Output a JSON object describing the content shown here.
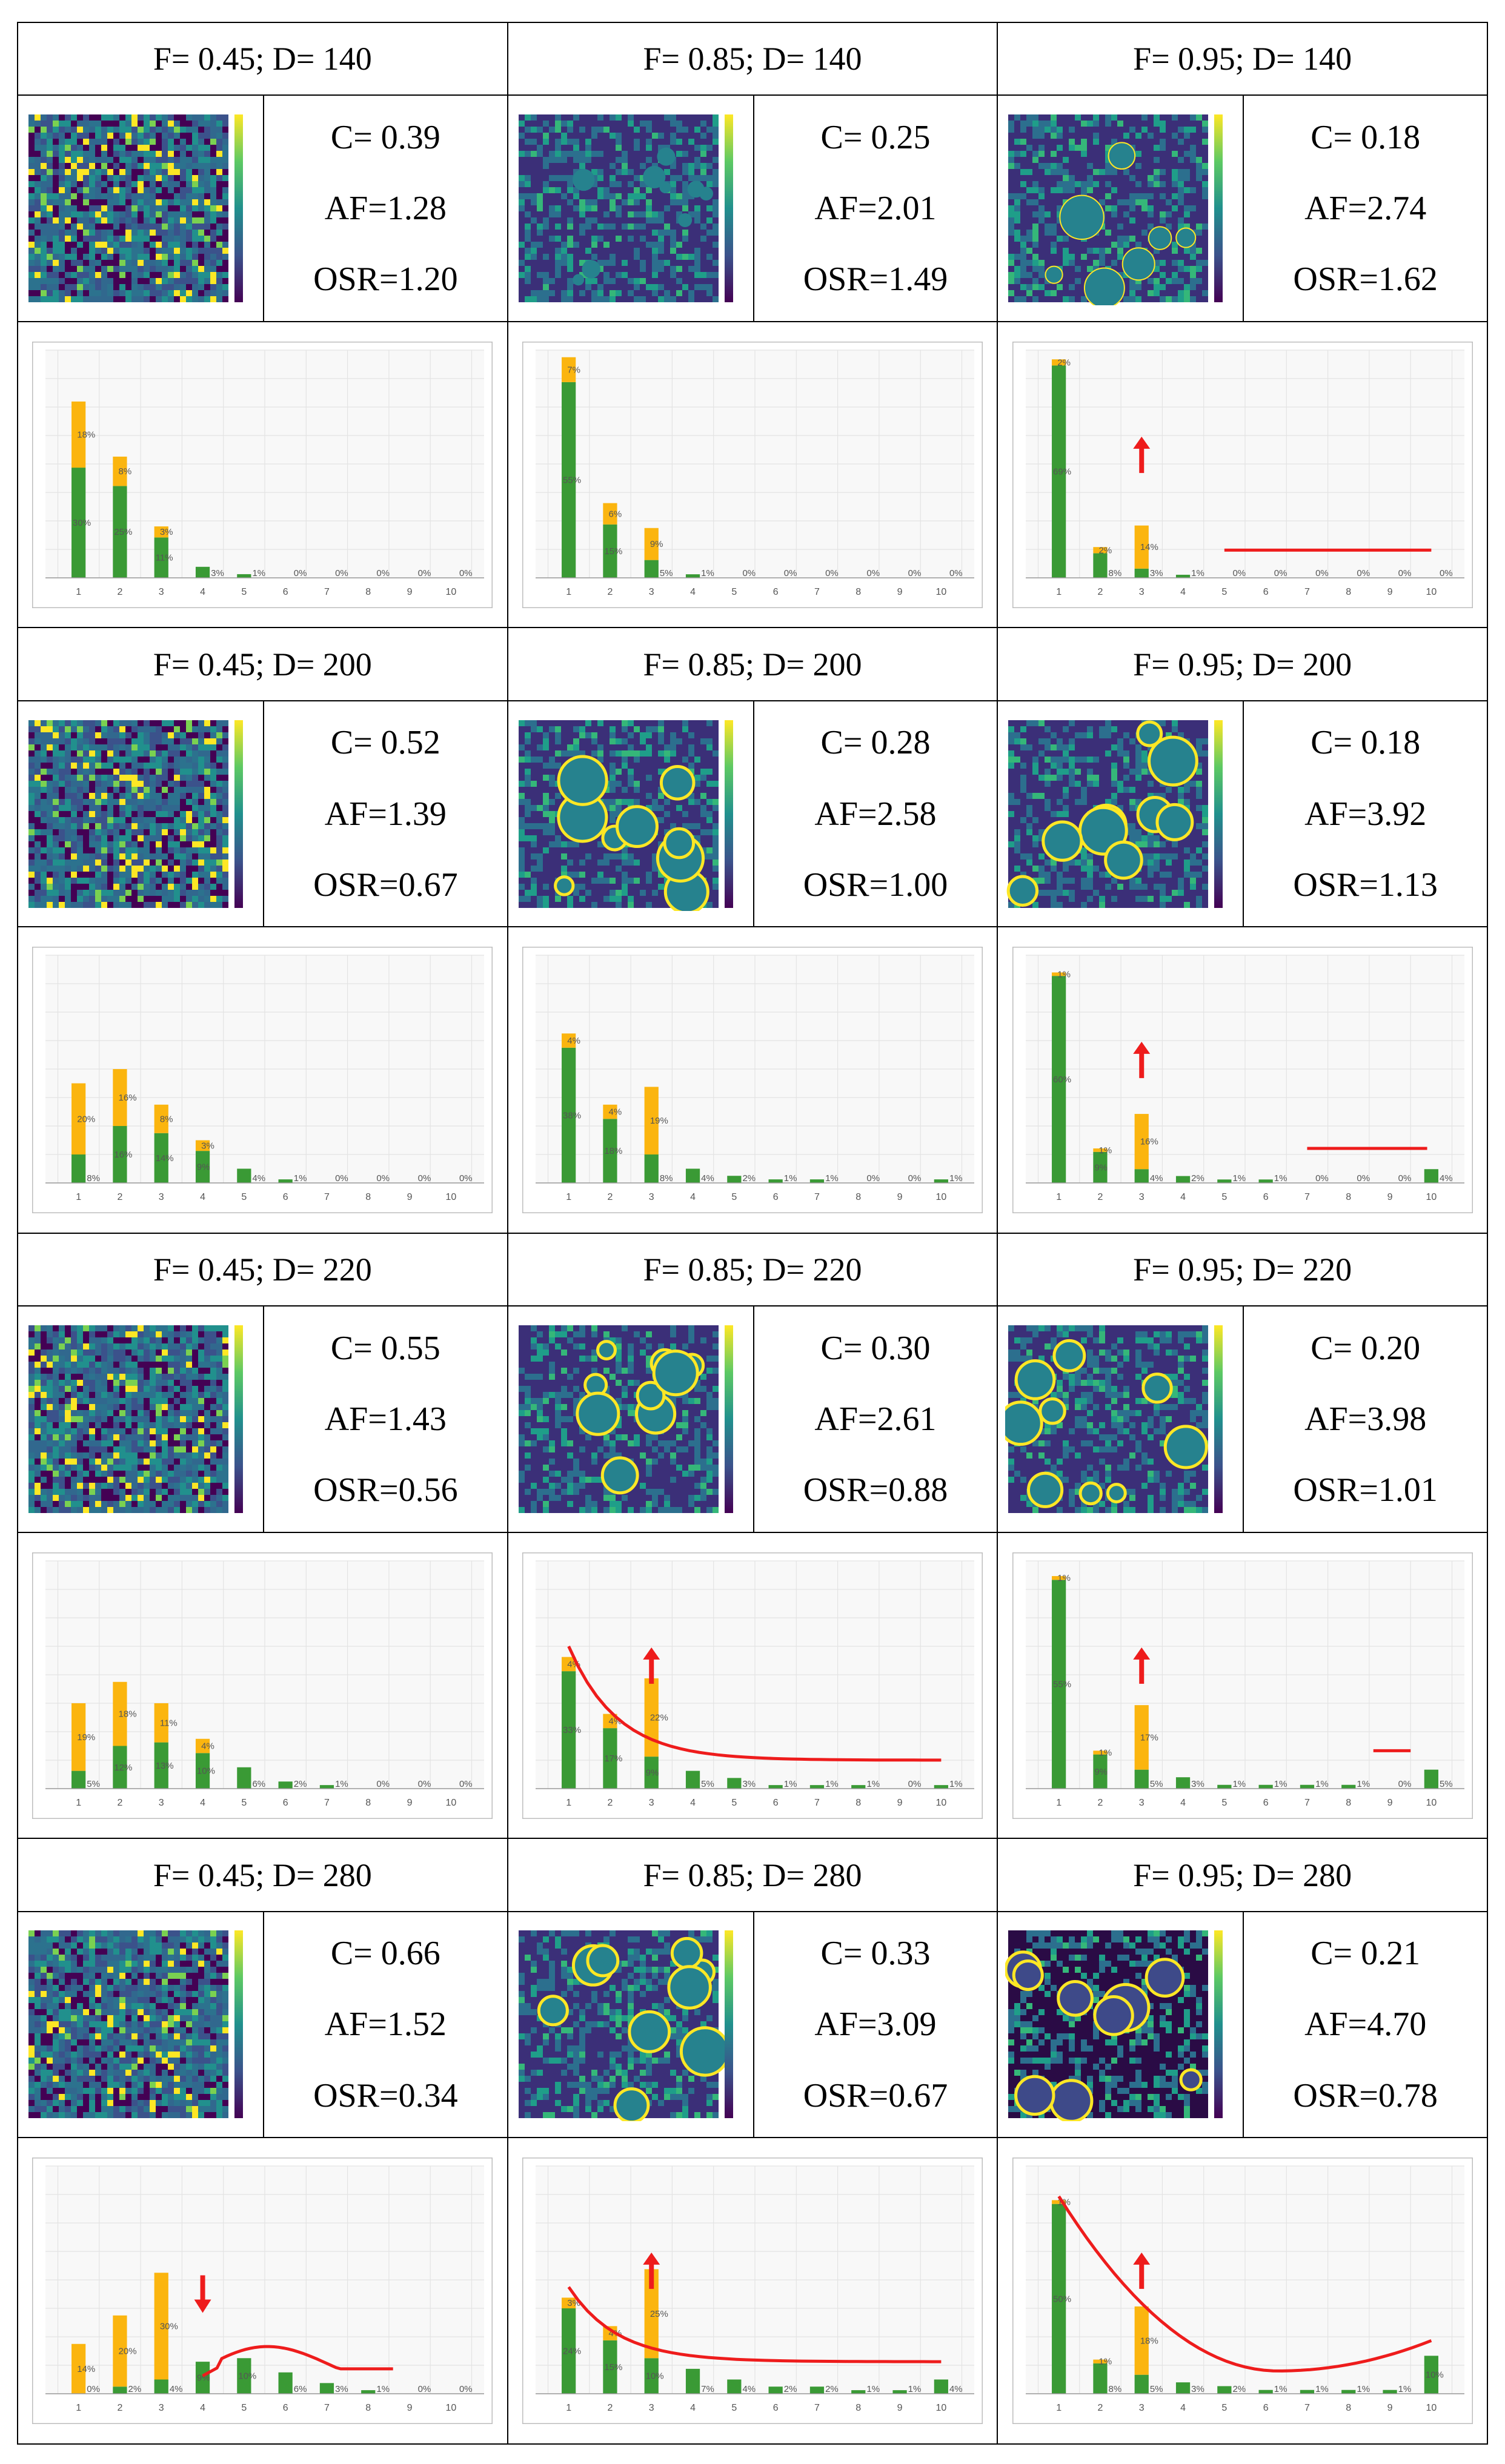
{
  "panels": [
    {
      "title": "F= 0.45; D= 140",
      "C": "C= 0.39",
      "AF": "AF=1.28",
      "OSR": "OSR=1.20",
      "map": "noise",
      "chart_data": {
        "type": "bar",
        "stacked": true,
        "categories": [
          "1",
          "2",
          "3",
          "4",
          "5",
          "6",
          "7",
          "8",
          "9",
          "10"
        ],
        "series": [
          {
            "name": "green",
            "color": "#3a9a35",
            "values": [
              30,
              25,
              11,
              3,
              1,
              0,
              0,
              0,
              0,
              0
            ]
          },
          {
            "name": "orange",
            "color": "#fbb50f",
            "values": [
              18,
              8,
              3,
              0,
              0,
              0,
              0,
              0,
              0,
              0
            ]
          }
        ],
        "green_labels": [
          "30%",
          "25%",
          "11%",
          "3%",
          "1%",
          "0%",
          "0%",
          "0%",
          "0%",
          "0%"
        ],
        "orange_labels": [
          "18%",
          "8%",
          "3%",
          "",
          "",
          "",
          "",
          "",
          "",
          ""
        ],
        "ylim": [
          0,
          62
        ]
      }
    },
    {
      "title": "F= 0.85; D= 140",
      "C": "C= 0.25",
      "AF": "AF=2.01",
      "OSR": "OSR=1.49",
      "map": "blobs-small",
      "chart_data": {
        "type": "bar",
        "stacked": true,
        "categories": [
          "1",
          "2",
          "3",
          "4",
          "5",
          "6",
          "7",
          "8",
          "9",
          "10"
        ],
        "series": [
          {
            "name": "green",
            "color": "#3a9a35",
            "values": [
              55,
              15,
              5,
              1,
              0,
              0,
              0,
              0,
              0,
              0
            ]
          },
          {
            "name": "orange",
            "color": "#fbb50f",
            "values": [
              7,
              6,
              9,
              0,
              0,
              0,
              0,
              0,
              0,
              0
            ]
          }
        ],
        "green_labels": [
          "55%",
          "15%",
          "5%",
          "1%",
          "0%",
          "0%",
          "0%",
          "0%",
          "0%",
          "0%"
        ],
        "orange_labels": [
          "7%",
          "6%",
          "9%",
          "",
          "",
          "",
          "",
          "",
          "",
          ""
        ],
        "ylim": [
          0,
          64
        ]
      }
    },
    {
      "title": "F= 0.95; D= 140",
      "C": "C= 0.18",
      "AF": "AF=2.74",
      "OSR": "OSR=1.62",
      "map": "blobs-large",
      "chart_data": {
        "type": "bar",
        "stacked": true,
        "categories": [
          "1",
          "2",
          "3",
          "4",
          "5",
          "6",
          "7",
          "8",
          "9",
          "10"
        ],
        "series": [
          {
            "name": "green",
            "color": "#3a9a35",
            "values": [
              69,
              8,
              3,
              1,
              0,
              0,
              0,
              0,
              0,
              0
            ]
          },
          {
            "name": "orange",
            "color": "#fbb50f",
            "values": [
              2,
              2,
              14,
              0,
              0,
              0,
              0,
              0,
              0,
              0
            ]
          }
        ],
        "green_labels": [
          "69%",
          "8%",
          "3%",
          "1%",
          "0%",
          "0%",
          "0%",
          "0%",
          "0%",
          "0%"
        ],
        "orange_labels": [
          "2%",
          "2%",
          "14%",
          "",
          "",
          "",
          "",
          "",
          "",
          ""
        ],
        "ylim": [
          0,
          74
        ],
        "arrow": {
          "x": 3,
          "dir": "up"
        },
        "redline": {
          "kind": "flat",
          "x0": 5,
          "x1": 10,
          "y": 9
        }
      }
    },
    {
      "title": "F= 0.45; D= 200",
      "C": "C= 0.52",
      "AF": "AF=1.39",
      "OSR": "OSR=0.67",
      "map": "noise",
      "chart_data": {
        "type": "bar",
        "stacked": true,
        "categories": [
          "1",
          "2",
          "3",
          "4",
          "5",
          "6",
          "7",
          "8",
          "9",
          "10"
        ],
        "series": [
          {
            "name": "green",
            "color": "#3a9a35",
            "values": [
              8,
              16,
              14,
              9,
              4,
              1,
              0,
              0,
              0,
              0
            ]
          },
          {
            "name": "orange",
            "color": "#fbb50f",
            "values": [
              20,
              16,
              8,
              3,
              0,
              0,
              0,
              0,
              0,
              0
            ]
          }
        ],
        "green_labels": [
          "8%",
          "16%",
          "14%",
          "9%",
          "4%",
          "1%",
          "0%",
          "0%",
          "0%",
          "0%"
        ],
        "orange_labels": [
          "20%",
          "16%",
          "8%",
          "3%",
          "",
          "",
          "",
          "",
          "",
          ""
        ],
        "ylim": [
          0,
          64
        ]
      }
    },
    {
      "title": "F= 0.85; D= 200",
      "C": "C= 0.28",
      "AF": "AF=2.58",
      "OSR": "OSR=1.00",
      "map": "rings-medium",
      "chart_data": {
        "type": "bar",
        "stacked": true,
        "categories": [
          "1",
          "2",
          "3",
          "4",
          "5",
          "6",
          "7",
          "8",
          "9",
          "10"
        ],
        "series": [
          {
            "name": "green",
            "color": "#3a9a35",
            "values": [
              38,
              18,
              8,
              4,
              2,
              1,
              1,
              0,
              0,
              1
            ]
          },
          {
            "name": "orange",
            "color": "#fbb50f",
            "values": [
              4,
              4,
              19,
              0,
              0,
              0,
              0,
              0,
              0,
              0
            ]
          }
        ],
        "green_labels": [
          "38%",
          "18%",
          "8%",
          "4%",
          "2%",
          "1%",
          "1%",
          "0%",
          "0%",
          "1%"
        ],
        "orange_labels": [
          "4%",
          "4%",
          "19%",
          "",
          "",
          "",
          "",
          "",
          "",
          ""
        ],
        "ylim": [
          0,
          64
        ]
      }
    },
    {
      "title": "F= 0.95; D= 200",
      "C": "C= 0.18",
      "AF": "AF=3.92",
      "OSR": "OSR=1.13",
      "map": "rings-large",
      "chart_data": {
        "type": "bar",
        "stacked": true,
        "categories": [
          "1",
          "2",
          "3",
          "4",
          "5",
          "6",
          "7",
          "8",
          "9",
          "10"
        ],
        "series": [
          {
            "name": "green",
            "color": "#3a9a35",
            "values": [
              60,
              9,
              4,
              2,
              1,
              1,
              0,
              0,
              0,
              4
            ]
          },
          {
            "name": "orange",
            "color": "#fbb50f",
            "values": [
              1,
              1,
              16,
              0,
              0,
              0,
              0,
              0,
              0,
              0
            ]
          }
        ],
        "green_labels": [
          "60%",
          "9%",
          "4%",
          "2%",
          "1%",
          "1%",
          "0%",
          "0%",
          "0%",
          "4%"
        ],
        "orange_labels": [
          "1%",
          "1%",
          "16%",
          "",
          "",
          "",
          "",
          "",
          "",
          ""
        ],
        "ylim": [
          0,
          66
        ],
        "arrow": {
          "x": 3,
          "dir": "up"
        },
        "redline": {
          "kind": "flat",
          "x0": 7,
          "x1": 9.9,
          "y": 10
        }
      }
    },
    {
      "title": "F= 0.45; D= 220",
      "C": "C= 0.55",
      "AF": "AF=1.43",
      "OSR": "OSR=0.56",
      "map": "noise",
      "chart_data": {
        "type": "bar",
        "stacked": true,
        "categories": [
          "1",
          "2",
          "3",
          "4",
          "5",
          "6",
          "7",
          "8",
          "9",
          "10"
        ],
        "series": [
          {
            "name": "green",
            "color": "#3a9a35",
            "values": [
              5,
              12,
              13,
              10,
              6,
              2,
              1,
              0,
              0,
              0
            ]
          },
          {
            "name": "orange",
            "color": "#fbb50f",
            "values": [
              19,
              18,
              11,
              4,
              0,
              0,
              0,
              0,
              0,
              0
            ]
          }
        ],
        "green_labels": [
          "5%",
          "12%",
          "13%",
          "10%",
          "6%",
          "2%",
          "1%",
          "0%",
          "0%",
          "0%"
        ],
        "orange_labels": [
          "19%",
          "18%",
          "11%",
          "4%",
          "",
          "",
          "",
          "",
          "",
          ""
        ],
        "ylim": [
          0,
          64
        ]
      }
    },
    {
      "title": "F= 0.85; D= 220",
      "C": "C= 0.30",
      "AF": "AF=2.61",
      "OSR": "OSR=0.88",
      "map": "rings-medium",
      "chart_data": {
        "type": "bar",
        "stacked": true,
        "categories": [
          "1",
          "2",
          "3",
          "4",
          "5",
          "6",
          "7",
          "8",
          "9",
          "10"
        ],
        "series": [
          {
            "name": "green",
            "color": "#3a9a35",
            "values": [
              33,
              17,
              9,
              5,
              3,
              1,
              1,
              1,
              0,
              1
            ]
          },
          {
            "name": "orange",
            "color": "#fbb50f",
            "values": [
              4,
              4,
              22,
              0,
              0,
              0,
              0,
              0,
              0,
              0
            ]
          }
        ],
        "green_labels": [
          "33%",
          "17%",
          "9%",
          "5%",
          "3%",
          "1%",
          "1%",
          "1%",
          "0%",
          "1%"
        ],
        "orange_labels": [
          "4%",
          "4%",
          "22%",
          "",
          "",
          "",
          "",
          "",
          "",
          ""
        ],
        "ylim": [
          0,
          64
        ],
        "arrow": {
          "x": 3,
          "dir": "up"
        },
        "redline": {
          "kind": "decay",
          "x0": 1,
          "x1": 10,
          "y0": 40,
          "y1": 8
        }
      }
    },
    {
      "title": "F= 0.95; D= 220",
      "C": "C= 0.20",
      "AF": "AF=3.98",
      "OSR": "OSR=1.01",
      "map": "rings-large",
      "chart_data": {
        "type": "bar",
        "stacked": true,
        "categories": [
          "1",
          "2",
          "3",
          "4",
          "5",
          "6",
          "7",
          "8",
          "9",
          "10"
        ],
        "series": [
          {
            "name": "green",
            "color": "#3a9a35",
            "values": [
              55,
              9,
              5,
              3,
              1,
              1,
              1,
              1,
              0,
              5
            ]
          },
          {
            "name": "orange",
            "color": "#fbb50f",
            "values": [
              1,
              1,
              17,
              0,
              0,
              0,
              0,
              0,
              0,
              0
            ]
          }
        ],
        "green_labels": [
          "55%",
          "9%",
          "5%",
          "3%",
          "1%",
          "1%",
          "1%",
          "1%",
          "0%",
          "5%"
        ],
        "orange_labels": [
          "1%",
          "1%",
          "17%",
          "",
          "",
          "",
          "",
          "",
          "",
          ""
        ],
        "ylim": [
          0,
          60
        ],
        "arrow": {
          "x": 3,
          "dir": "up"
        },
        "redline": {
          "kind": "flat",
          "x0": 8.6,
          "x1": 9.5,
          "y": 10
        }
      }
    },
    {
      "title": "F= 0.45; D= 280",
      "C": "C= 0.66",
      "AF": "AF=1.52",
      "OSR": "OSR=0.34",
      "map": "noise",
      "chart_data": {
        "type": "bar",
        "stacked": true,
        "categories": [
          "1",
          "2",
          "3",
          "4",
          "5",
          "6",
          "7",
          "8",
          "9",
          "10"
        ],
        "series": [
          {
            "name": "green",
            "color": "#3a9a35",
            "values": [
              0,
              2,
              4,
              9,
              10,
              6,
              3,
              1,
              0,
              0
            ]
          },
          {
            "name": "orange",
            "color": "#fbb50f",
            "values": [
              14,
              20,
              30,
              0,
              0,
              0,
              0,
              0,
              0,
              0
            ]
          }
        ],
        "green_labels": [
          "0%",
          "2%",
          "4%",
          "9%",
          "10%",
          "6%",
          "3%",
          "1%",
          "0%",
          "0%"
        ],
        "orange_labels": [
          "14%",
          "20%",
          "30%",
          "",
          "",
          "",
          "",
          "",
          "",
          ""
        ],
        "ylim": [
          0,
          64
        ],
        "arrow": {
          "x": 4,
          "dir": "down"
        },
        "redline": {
          "kind": "hump",
          "x0": 4,
          "x1": 8.6,
          "ypk": 14,
          "ye": 7
        }
      }
    },
    {
      "title": "F= 0.85; D= 280",
      "C": "C= 0.33",
      "AF": "AF=3.09",
      "OSR": "OSR=0.67",
      "map": "rings-bright",
      "chart_data": {
        "type": "bar",
        "stacked": true,
        "categories": [
          "1",
          "2",
          "3",
          "4",
          "5",
          "6",
          "7",
          "8",
          "9",
          "10"
        ],
        "series": [
          {
            "name": "green",
            "color": "#3a9a35",
            "values": [
              24,
              15,
              10,
              7,
              4,
              2,
              2,
              1,
              1,
              4
            ]
          },
          {
            "name": "orange",
            "color": "#fbb50f",
            "values": [
              3,
              4,
              25,
              0,
              0,
              0,
              0,
              0,
              0,
              0
            ]
          }
        ],
        "green_labels": [
          "24%",
          "15%",
          "10%",
          "7%",
          "4%",
          "2%",
          "2%",
          "1%",
          "1%",
          "4%"
        ],
        "orange_labels": [
          "3%",
          "4%",
          "25%",
          "",
          "",
          "",
          "",
          "",
          "",
          ""
        ],
        "ylim": [
          0,
          64
        ],
        "arrow": {
          "x": 3,
          "dir": "up"
        },
        "redline": {
          "kind": "decay",
          "x0": 1,
          "x1": 10,
          "y0": 30,
          "y1": 9
        }
      }
    },
    {
      "title": "F= 0.95; D= 280",
      "C": "C= 0.21",
      "AF": "AF=4.70",
      "OSR": "OSR=0.78",
      "map": "rings-dark",
      "chart_data": {
        "type": "bar",
        "stacked": true,
        "categories": [
          "1",
          "2",
          "3",
          "4",
          "5",
          "6",
          "7",
          "8",
          "9",
          "10"
        ],
        "series": [
          {
            "name": "green",
            "color": "#3a9a35",
            "values": [
              50,
              8,
              5,
              3,
              2,
              1,
              1,
              1,
              1,
              10
            ]
          },
          {
            "name": "orange",
            "color": "#fbb50f",
            "values": [
              1,
              1,
              18,
              0,
              0,
              0,
              0,
              0,
              0,
              0
            ]
          }
        ],
        "green_labels": [
          "50%",
          "8%",
          "5%",
          "3%",
          "2%",
          "1%",
          "1%",
          "1%",
          "1%",
          "10%"
        ],
        "orange_labels": [
          "1%",
          "1%",
          "18%",
          "",
          "",
          "",
          "",
          "",
          "",
          ""
        ],
        "ylim": [
          0,
          60
        ],
        "arrow": {
          "x": 3,
          "dir": "up"
        },
        "redline": {
          "kind": "uvalley",
          "x0": 1,
          "x1": 10,
          "y0": 52,
          "ymin": 6,
          "xmin": 6.3,
          "y1": 14
        }
      }
    }
  ]
}
